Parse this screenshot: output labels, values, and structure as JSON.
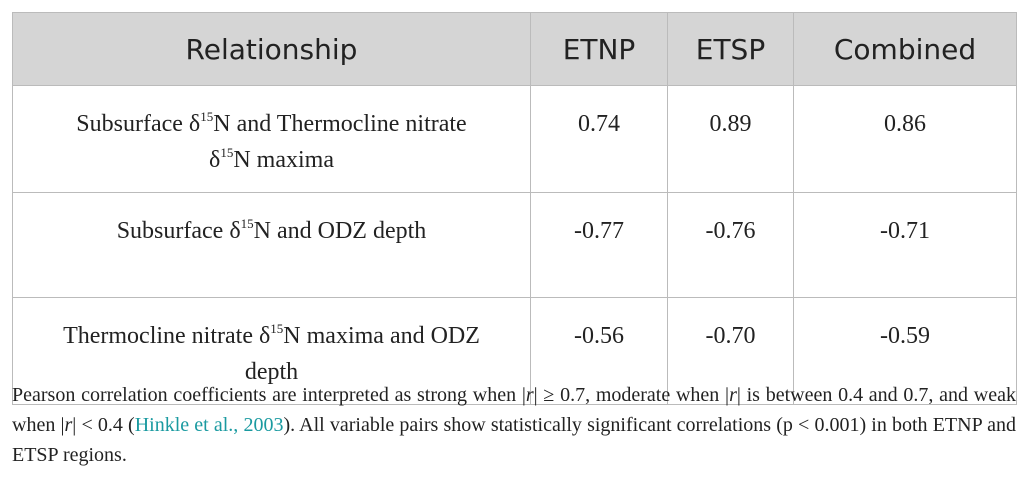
{
  "table": {
    "header": [
      "Relationship",
      "ETNP",
      "ETSP",
      "Combined"
    ],
    "rows": [
      [
        {
          "parts": [
            "Subsurface δ",
            "15",
            "N and Thermocline nitrate δ",
            "15",
            "N maxima"
          ]
        },
        "0.74",
        "0.89",
        "0.86"
      ],
      [
        {
          "parts": [
            "Subsurface δ",
            "15",
            "N and ODZ depth"
          ]
        },
        "-0.77",
        "-0.76",
        "-0.71"
      ],
      [
        {
          "parts": [
            "Thermocline nitrate δ",
            "15",
            "N maxima and ODZ depth"
          ]
        },
        "-0.56",
        "-0.70",
        "-0.59"
      ]
    ]
  },
  "caption": [
    "Pearson correlation coefficients are interpreted as strong when |",
    "r",
    "| ≥ 0.7, moderate when |",
    "r",
    "| is between 0.4 and 0.7, and weak when |",
    "r",
    "| < 0.4 (",
    "Hinkle et al., 2003",
    "). All variable pairs show statistically significant correlations (p < 0.001) in both ETNP and ETSP regions."
  ]
}
